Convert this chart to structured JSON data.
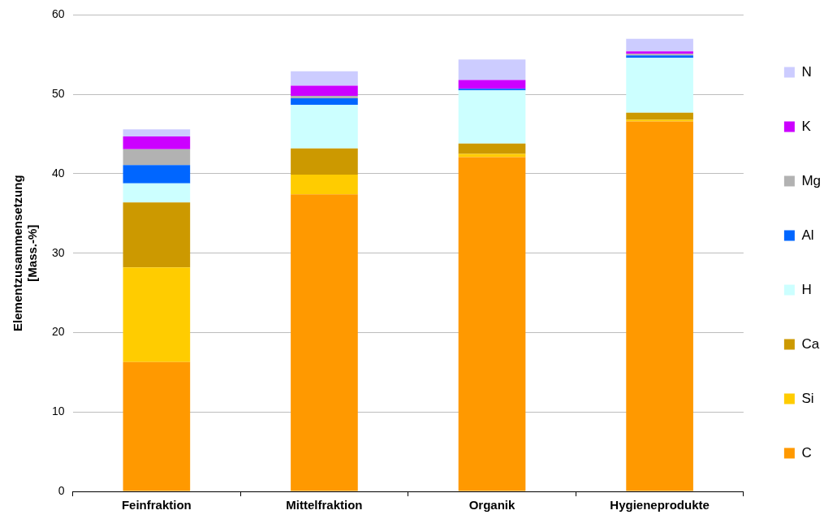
{
  "chart_data": {
    "type": "bar",
    "stacked": true,
    "ylabel": "Elementzusammensetzung\n[Mass.-%]",
    "categories": [
      "Feinfraktion",
      "Mittelfraktion",
      "Organik",
      "Hygieneprodukte"
    ],
    "ylim": [
      0,
      60
    ],
    "yticks": [
      0,
      10,
      20,
      30,
      40,
      50,
      60
    ],
    "grid": "y",
    "legend": "right",
    "series": [
      {
        "name": "C",
        "color": "#ff9900",
        "values": [
          16.3,
          37.4,
          42.1,
          46.6
        ]
      },
      {
        "name": "Si",
        "color": "#ffcc00",
        "values": [
          11.9,
          2.5,
          0.4,
          0.2
        ]
      },
      {
        "name": "Ca",
        "color": "#cc9900",
        "values": [
          8.2,
          3.3,
          1.3,
          0.9
        ]
      },
      {
        "name": "H",
        "color": "#ccffff",
        "values": [
          2.4,
          5.5,
          6.7,
          6.9
        ]
      },
      {
        "name": "Al",
        "color": "#0066ff",
        "values": [
          2.3,
          0.8,
          0.2,
          0.3
        ]
      },
      {
        "name": "Mg",
        "color": "#b2b2b2",
        "values": [
          2.0,
          0.3,
          0,
          0.2
        ]
      },
      {
        "name": "K",
        "color": "#cc00ff",
        "values": [
          1.6,
          1.3,
          1.1,
          0.3
        ]
      },
      {
        "name": "N",
        "color": "#ccccff",
        "values": [
          0.9,
          1.8,
          2.6,
          1.6
        ]
      }
    ]
  }
}
